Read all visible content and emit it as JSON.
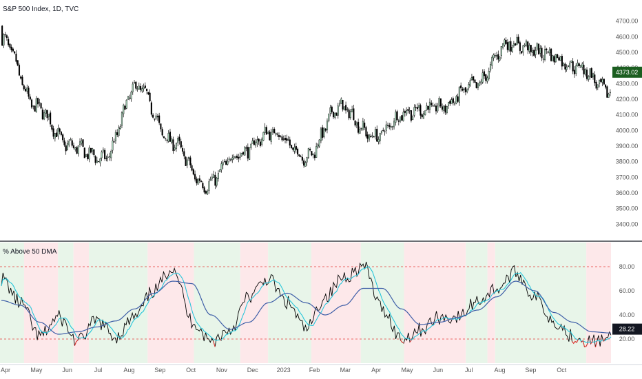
{
  "chart_data": [
    {
      "type": "candlestick",
      "title": "S&P 500 Index, 1D, TVC",
      "ylim": [
        3300,
        4800
      ],
      "yticks": [
        "4700.00",
        "4600.00",
        "4500.00",
        "4400.00",
        "4300.00",
        "4200.00",
        "4100.00",
        "4000.00",
        "3900.00",
        "3800.00",
        "3700.00",
        "3600.00",
        "3500.00",
        "3400.00"
      ],
      "ytick_values": [
        4700,
        4600,
        4500,
        4400,
        4300,
        4200,
        4100,
        4000,
        3900,
        3800,
        3700,
        3600,
        3500,
        3400
      ],
      "last_price_label": "4373.02",
      "last_price": 4373.02,
      "colors": {
        "up": "#a7d3b8",
        "down": "#000000",
        "wick": "#000000",
        "last_tag": "#1b5e20"
      },
      "anchors": {
        "months": [
          "Apr",
          "May",
          "Jun",
          "Jul",
          "Aug",
          "Sep",
          "Oct",
          "Nov",
          "Dec",
          "2023",
          "Feb",
          "Mar",
          "Apr",
          "May",
          "Jun",
          "Jul",
          "Aug",
          "Sep",
          "Oct"
        ],
        "close": [
          4580,
          4150,
          3900,
          3820,
          4280,
          3930,
          3650,
          3850,
          3990,
          3830,
          4150,
          3960,
          4120,
          4150,
          4290,
          4560,
          4500,
          4410,
          4250
        ]
      }
    },
    {
      "type": "line",
      "title": "% Above 50 DMA",
      "ylim": [
        0,
        100
      ],
      "yticks": [
        "80.00",
        "60.00",
        "40.00",
        "20.00"
      ],
      "ytick_values": [
        80,
        60,
        40,
        20
      ],
      "reference_lines": [
        80,
        20
      ],
      "last_value_label": "28.22",
      "last_value": 28.22,
      "series": [
        {
          "color": "#000000",
          "width": 0.9
        },
        {
          "color": "#26c6da",
          "width": 1.1
        },
        {
          "color": "#3f5fa8",
          "width": 1.2
        }
      ],
      "oversold_color": "#e53935",
      "zones": [
        {
          "from": 0,
          "to": 0.6,
          "state": "bull"
        },
        {
          "from": 0.6,
          "to": 1.7,
          "state": "bear"
        },
        {
          "from": 1.7,
          "to": 2.2,
          "state": "bull"
        },
        {
          "from": 2.2,
          "to": 2.7,
          "state": "bear"
        },
        {
          "from": 2.7,
          "to": 4.6,
          "state": "bull"
        },
        {
          "from": 4.6,
          "to": 6.1,
          "state": "bear"
        },
        {
          "from": 6.1,
          "to": 7.6,
          "state": "bull"
        },
        {
          "from": 7.6,
          "to": 8.5,
          "state": "bear"
        },
        {
          "from": 8.5,
          "to": 9.9,
          "state": "bull"
        },
        {
          "from": 9.9,
          "to": 11.5,
          "state": "bear"
        },
        {
          "from": 11.5,
          "to": 12.9,
          "state": "bull"
        },
        {
          "from": 12.9,
          "to": 14.9,
          "state": "bear"
        },
        {
          "from": 14.9,
          "to": 15.6,
          "state": "bull"
        },
        {
          "from": 15.6,
          "to": 15.85,
          "state": "bear"
        },
        {
          "from": 15.85,
          "to": 18.8,
          "state": "bull"
        },
        {
          "from": 18.8,
          "to": 20.9,
          "state": "bear"
        }
      ],
      "zone_colors": {
        "bull": "#e8f5e9",
        "bear": "#fde8ea"
      },
      "anchors": {
        "raw": [
          70,
          50,
          22,
          38,
          18,
          35,
          22,
          38,
          60,
          80,
          35,
          18,
          28,
          55,
          70,
          50,
          28,
          55,
          72,
          80,
          45,
          20,
          28,
          38,
          38,
          52,
          62,
          75,
          55,
          35,
          22,
          18,
          20
        ],
        "ma": [
          52,
          48,
          34,
          24,
          26,
          30,
          35,
          45,
          58,
          68,
          66,
          40,
          28,
          34,
          50,
          58,
          50,
          40,
          48,
          62,
          62,
          45,
          32,
          34,
          38,
          44,
          55,
          68,
          60,
          42,
          34,
          26,
          25
        ]
      }
    }
  ]
}
